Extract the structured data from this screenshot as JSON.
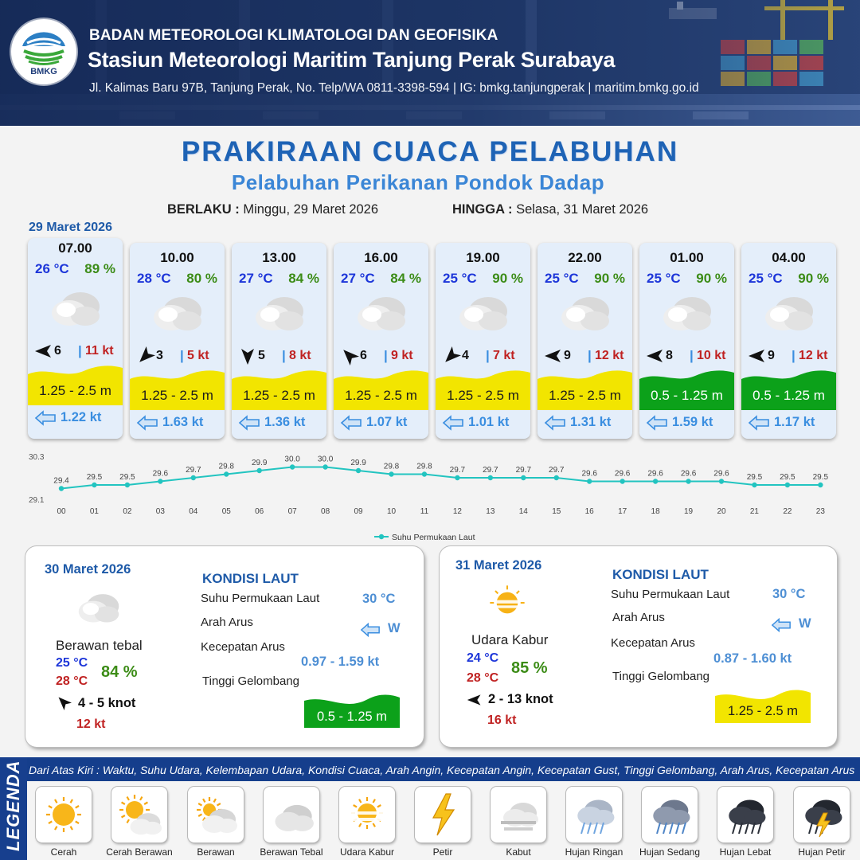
{
  "header": {
    "logo_text": "BMKG",
    "org": "BADAN METEOROLOGI KLIMATOLOGI DAN GEOFISIKA",
    "station": "Stasiun Meteorologi Maritim Tanjung Perak Surabaya",
    "address": "Jl. Kalimas Baru 97B, Tanjung Perak, No. Telp/WA 0811-3398-594 | IG: bmkg.tanjungperak | maritim.bmkg.go.id"
  },
  "title": "PRAKIRAAN CUACA PELABUHAN",
  "subtitle": "Pelabuhan Perikanan Pondok Dadap",
  "validity": {
    "from_label": "BERLAKU :",
    "from_value": "Minggu, 29 Maret 2026",
    "to_label": "HINGGA :",
    "to_value": "Selasa, 31 Maret 2026"
  },
  "forecast_date": "29 Maret 2026",
  "forecasts": [
    {
      "time": "07.00",
      "temp": "26 °C",
      "rh": "89 %",
      "wind_dir": "W",
      "wind": "6",
      "sep": "|",
      "gust": "11 kt",
      "wave": "1.25 - 2.5 m",
      "wave_class": "yellow",
      "current": "1.22 kt",
      "current_icon": "arrow-left-icon"
    },
    {
      "time": "10.00",
      "temp": "28 °C",
      "rh": "80 %",
      "wind_dir": "SW",
      "wind": "3",
      "sep": "|",
      "gust": "5 kt",
      "wave": "1.25 - 2.5 m",
      "wave_class": "yellow",
      "current": "1.63 kt",
      "current_icon": "arrow-left-icon"
    },
    {
      "time": "13.00",
      "temp": "27 °C",
      "rh": "84 %",
      "wind_dir": "S",
      "wind": "5",
      "sep": "|",
      "gust": "8 kt",
      "wave": "1.25 - 2.5 m",
      "wave_class": "yellow",
      "current": "1.36 kt",
      "current_icon": "arrow-left-icon"
    },
    {
      "time": "16.00",
      "temp": "27 °C",
      "rh": "84 %",
      "wind_dir": "NW",
      "wind": "6",
      "sep": "|",
      "gust": "9 kt",
      "wave": "1.25 - 2.5 m",
      "wave_class": "yellow",
      "current": "1.07 kt",
      "current_icon": "arrow-left-icon"
    },
    {
      "time": "19.00",
      "temp": "25 °C",
      "rh": "90 %",
      "wind_dir": "SW",
      "wind": "4",
      "sep": "|",
      "gust": "7 kt",
      "wave": "1.25 - 2.5 m",
      "wave_class": "yellow",
      "current": "1.01 kt",
      "current_icon": "arrow-left-icon"
    },
    {
      "time": "22.00",
      "temp": "25 °C",
      "rh": "90 %",
      "wind_dir": "W",
      "wind": "9",
      "sep": "|",
      "gust": "12 kt",
      "wave": "1.25 - 2.5 m",
      "wave_class": "yellow",
      "current": "1.31 kt",
      "current_icon": "arrow-left-icon"
    },
    {
      "time": "01.00",
      "temp": "25 °C",
      "rh": "90 %",
      "wind_dir": "W",
      "wind": "8",
      "sep": "|",
      "gust": "10 kt",
      "wave": "0.5 - 1.25 m",
      "wave_class": "green",
      "current": "1.59 kt",
      "current_icon": "arrow-left-icon"
    },
    {
      "time": "04.00",
      "temp": "25 °C",
      "rh": "90 %",
      "wind_dir": "W",
      "wind": "9",
      "sep": "|",
      "gust": "12 kt",
      "wave": "0.5 - 1.25 m",
      "wave_class": "green",
      "current": "1.17 kt",
      "current_icon": "arrow-left-icon"
    }
  ],
  "chart_data": {
    "type": "line",
    "title": "",
    "xlabel": "",
    "ylabel": "",
    "ylim": [
      29.1,
      30.3
    ],
    "y_tick_labels": [
      "30.3",
      "29.1"
    ],
    "categories": [
      "00",
      "01",
      "02",
      "03",
      "04",
      "05",
      "06",
      "07",
      "08",
      "09",
      "10",
      "11",
      "12",
      "13",
      "14",
      "15",
      "16",
      "17",
      "18",
      "19",
      "20",
      "21",
      "22",
      "23"
    ],
    "series": [
      {
        "name": "Suhu Permukaan Laut",
        "values": [
          29.4,
          29.5,
          29.5,
          29.6,
          29.7,
          29.8,
          29.9,
          30.0,
          30.0,
          29.9,
          29.8,
          29.8,
          29.7,
          29.7,
          29.7,
          29.7,
          29.6,
          29.6,
          29.6,
          29.6,
          29.6,
          29.5,
          29.5,
          29.5
        ],
        "color": "#22c4c0"
      }
    ],
    "data_labels": true,
    "grid": false,
    "legend": "bottom"
  },
  "days": [
    {
      "date": "30 Maret 2026",
      "condition": "Berawan tebal",
      "condition_icon": "thick-cloud-icon",
      "temp_min": "25 °C",
      "temp_max": "28 °C",
      "rh": "84 %",
      "wind_dir": "NW",
      "wind": "4  - 5 knot",
      "gust": "12 kt",
      "sea_title": "KONDISI LAUT",
      "sst_label": "Suhu Permukaan Laut",
      "sst": "30 °C",
      "current_dir_label": "Arah Arus",
      "current_dir": "W",
      "current_speed_label": "Kecepatan Arus",
      "current_speed": "0.97  - 1.59 kt",
      "wave_label": "Tinggi Gelombang",
      "wave": "0.5 - 1.25 m",
      "wave_class": "green"
    },
    {
      "date": "31 Maret 2026",
      "condition": "Udara Kabur",
      "condition_icon": "haze-icon",
      "temp_min": "24 °C",
      "temp_max": "28 °C",
      "rh": "85 %",
      "wind_dir": "W",
      "wind": "2  - 13 knot",
      "gust": "16 kt",
      "sea_title": "KONDISI LAUT",
      "sst_label": "Suhu Permukaan Laut",
      "sst": "30 °C",
      "current_dir_label": "Arah Arus",
      "current_dir": "W",
      "current_speed_label": "Kecepatan Arus",
      "current_speed": "0.87  - 1.60 kt",
      "wave_label": "Tinggi Gelombang",
      "wave": "1.25 - 2.5 m",
      "wave_class": "yellow"
    }
  ],
  "legend": {
    "side_title": "LEGENDA",
    "caption": "Dari Atas Kiri : Waktu, Suhu Udara, Kelembapan Udara, Kondisi Cuaca, Arah Angin, Kecepatan Angin, Kecepatan Gust, Tinggi Gelombang, Arah Arus, Kecepatan Arus",
    "items": [
      {
        "label": "Cerah",
        "icon": "sun-icon"
      },
      {
        "label": "Cerah Berawan",
        "icon": "sun-cloud-icon"
      },
      {
        "label": "Berawan",
        "icon": "cloud-sun-icon"
      },
      {
        "label": "Berawan Tebal",
        "icon": "thick-cloud-icon"
      },
      {
        "label": "Udara Kabur",
        "icon": "haze-icon"
      },
      {
        "label": "Petir",
        "icon": "lightning-icon"
      },
      {
        "label": "Kabut",
        "icon": "fog-icon"
      },
      {
        "label": "Hujan Ringan",
        "icon": "light-rain-icon"
      },
      {
        "label": "Hujan Sedang",
        "icon": "moderate-rain-icon"
      },
      {
        "label": "Hujan Lebat",
        "icon": "heavy-rain-icon"
      },
      {
        "label": "Hujan Petir",
        "icon": "thunderstorm-icon"
      }
    ]
  },
  "colors": {
    "title_blue": "#1e63b5",
    "wave_yellow": "#f2e500",
    "wave_green": "#0ca11a",
    "gust_red": "#c02222",
    "temp_blue": "#1d36d9",
    "rh_green": "#3c8c17",
    "current_blue": "#3a8ee0",
    "line_teal": "#22c4c0"
  }
}
